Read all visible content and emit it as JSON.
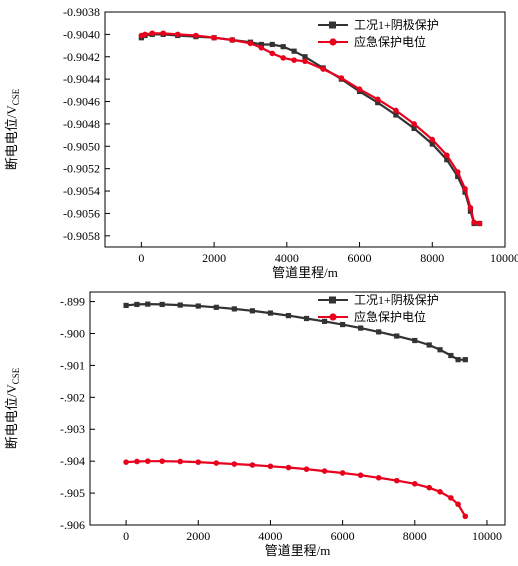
{
  "chart_data": [
    {
      "type": "line",
      "title": "",
      "xlabel": "管道里程/m",
      "ylabel_main": "断电电位/V",
      "ylabel_sub": "CSE",
      "xlim": [
        -1000,
        10000
      ],
      "ylim": [
        -0.9059,
        -0.9038
      ],
      "xticks": [
        0,
        2000,
        4000,
        6000,
        8000,
        10000
      ],
      "xtick_labels": [
        "0",
        "2000",
        "4000",
        "6000",
        "8000",
        "10000"
      ],
      "yticks": [
        -0.9038,
        -0.904,
        -0.9042,
        -0.9044,
        -0.9046,
        -0.9048,
        -0.905,
        -0.9052,
        -0.9054,
        -0.9056,
        -0.9058
      ],
      "ytick_labels": [
        "-0.9038",
        "-0.9040",
        "-0.9042",
        "-0.9044",
        "-0.9046",
        "-0.9048",
        "-0.9050",
        "-0.9052",
        "-0.9054",
        "-0.9056",
        "-0.9058"
      ],
      "legend_position": "top-right",
      "grid": false,
      "series": [
        {
          "name": "工况1+阴极保护",
          "color": "#333333",
          "marker": "square",
          "x": [
            0,
            100,
            300,
            600,
            1000,
            1500,
            2000,
            2500,
            3000,
            3300,
            3600,
            3900,
            4200,
            4500,
            5000,
            5500,
            6000,
            6500,
            7000,
            7500,
            8000,
            8400,
            8700,
            8900,
            9050,
            9150,
            9300
          ],
          "y": [
            -0.90403,
            -0.90401,
            -0.904,
            -0.904,
            -0.90401,
            -0.90402,
            -0.90403,
            -0.90405,
            -0.90407,
            -0.90409,
            -0.90409,
            -0.90411,
            -0.90415,
            -0.9042,
            -0.9043,
            -0.9044,
            -0.90451,
            -0.90461,
            -0.90472,
            -0.90484,
            -0.90498,
            -0.90512,
            -0.90527,
            -0.90541,
            -0.90558,
            -0.90569,
            -0.90569
          ]
        },
        {
          "name": "应急保护电位",
          "color": "#e8001c",
          "marker": "circle",
          "x": [
            0,
            100,
            300,
            600,
            1000,
            1500,
            2000,
            2500,
            3000,
            3300,
            3600,
            3900,
            4200,
            4500,
            5000,
            5500,
            6000,
            6500,
            7000,
            7500,
            8000,
            8400,
            8700,
            8900,
            9050,
            9150,
            9300
          ],
          "y": [
            -0.90401,
            -0.904,
            -0.90399,
            -0.90399,
            -0.904,
            -0.90401,
            -0.90403,
            -0.90405,
            -0.90408,
            -0.90412,
            -0.90417,
            -0.90421,
            -0.90423,
            -0.90424,
            -0.90431,
            -0.90439,
            -0.90449,
            -0.90458,
            -0.90468,
            -0.9048,
            -0.90494,
            -0.90508,
            -0.90523,
            -0.90538,
            -0.90555,
            -0.90568,
            -0.90569
          ]
        }
      ]
    },
    {
      "type": "line",
      "title": "",
      "xlabel": "管道里程/m",
      "ylabel_main": "断电电位/V",
      "ylabel_sub": "CSE",
      "xlim": [
        -1000,
        10500
      ],
      "ylim": [
        -0.906,
        -0.8987
      ],
      "xticks": [
        0,
        2000,
        4000,
        6000,
        8000,
        10000
      ],
      "xtick_labels": [
        "0",
        "2000",
        "4000",
        "6000",
        "8000",
        "10000"
      ],
      "yticks": [
        -0.899,
        -0.9,
        -0.901,
        -0.902,
        -0.903,
        -0.904,
        -0.905,
        -0.906
      ],
      "ytick_labels": [
        "-.899",
        "-.900",
        "-.901",
        "-.902",
        "-.903",
        "-.904",
        "-.905",
        "-.906"
      ],
      "legend_position": "top-right",
      "grid": false,
      "series": [
        {
          "name": "工况1+阴极保护",
          "color": "#333333",
          "marker": "square",
          "x": [
            0,
            300,
            600,
            1000,
            1500,
            2000,
            2500,
            3000,
            3500,
            4000,
            4500,
            5000,
            5500,
            6000,
            6500,
            7000,
            7500,
            8000,
            8400,
            8700,
            9000,
            9200,
            9400
          ],
          "y": [
            -0.89912,
            -0.89909,
            -0.89908,
            -0.89909,
            -0.89911,
            -0.89914,
            -0.89918,
            -0.89923,
            -0.89929,
            -0.89936,
            -0.89944,
            -0.89953,
            -0.89962,
            -0.89972,
            -0.89983,
            -0.89995,
            -0.90008,
            -0.90022,
            -0.90036,
            -0.90051,
            -0.90069,
            -0.90082,
            -0.90082
          ]
        },
        {
          "name": "应急保护电位",
          "color": "#e8001c",
          "marker": "circle",
          "x": [
            0,
            300,
            600,
            1000,
            1500,
            2000,
            2500,
            3000,
            3500,
            4000,
            4500,
            5000,
            5500,
            6000,
            6500,
            7000,
            7500,
            8000,
            8400,
            8700,
            9000,
            9200,
            9400
          ],
          "y": [
            -0.90403,
            -0.90401,
            -0.904,
            -0.904,
            -0.90401,
            -0.90403,
            -0.90406,
            -0.90409,
            -0.90412,
            -0.90416,
            -0.9042,
            -0.90425,
            -0.90431,
            -0.90437,
            -0.90444,
            -0.90452,
            -0.90461,
            -0.90471,
            -0.90483,
            -0.90496,
            -0.90515,
            -0.90535,
            -0.90573
          ]
        }
      ]
    }
  ]
}
